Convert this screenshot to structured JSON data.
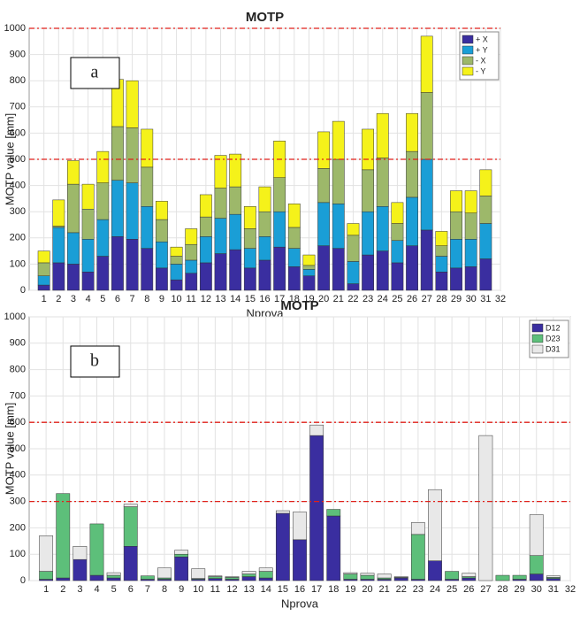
{
  "chart_data": [
    {
      "type": "bar",
      "stacked": true,
      "title": "MOTP",
      "xlabel": "Nprova",
      "ylabel": "MOTP value [mm]",
      "annotation": "a",
      "x": [
        1,
        2,
        3,
        4,
        5,
        6,
        7,
        8,
        9,
        10,
        11,
        12,
        13,
        14,
        15,
        16,
        17,
        18,
        19,
        20,
        21,
        22,
        23,
        24,
        25,
        26,
        27,
        28,
        29,
        30,
        31
      ],
      "series": [
        {
          "name": "+ X",
          "color": "#3a2ea0",
          "values": [
            20,
            105,
            100,
            70,
            130,
            205,
            195,
            160,
            85,
            40,
            65,
            105,
            140,
            155,
            85,
            115,
            165,
            90,
            55,
            170,
            160,
            25,
            135,
            150,
            105,
            170,
            230,
            70,
            85,
            90,
            120
          ]
        },
        {
          "name": "+ Y",
          "color": "#1a9ed6",
          "values": [
            35,
            135,
            120,
            125,
            140,
            215,
            215,
            160,
            100,
            60,
            50,
            100,
            135,
            135,
            75,
            90,
            135,
            70,
            25,
            165,
            170,
            85,
            165,
            170,
            85,
            185,
            270,
            60,
            110,
            105,
            135
          ]
        },
        {
          "name": "- X",
          "color": "#9db86a",
          "values": [
            50,
            5,
            185,
            115,
            140,
            205,
            210,
            150,
            85,
            30,
            60,
            75,
            115,
            105,
            75,
            95,
            130,
            80,
            15,
            130,
            170,
            100,
            160,
            185,
            65,
            175,
            255,
            40,
            105,
            100,
            105
          ]
        },
        {
          "name": "- Y",
          "color": "#f5f21a",
          "values": [
            45,
            100,
            90,
            95,
            120,
            180,
            180,
            145,
            70,
            35,
            60,
            85,
            125,
            125,
            85,
            95,
            140,
            90,
            40,
            140,
            145,
            45,
            155,
            170,
            80,
            145,
            215,
            55,
            80,
            85,
            100
          ]
        }
      ],
      "xlim": [
        0,
        32
      ],
      "xticks": [
        1,
        2,
        3,
        4,
        5,
        6,
        7,
        8,
        9,
        10,
        11,
        12,
        13,
        14,
        15,
        16,
        17,
        18,
        19,
        20,
        21,
        22,
        23,
        24,
        25,
        26,
        27,
        28,
        29,
        30,
        31,
        32
      ],
      "ylim": [
        0,
        1000
      ],
      "yticks": [
        0,
        100,
        200,
        300,
        400,
        500,
        600,
        700,
        800,
        900,
        1000
      ],
      "hlines": [
        500,
        1000
      ],
      "hline_color": "#e0201a",
      "grid": true,
      "legend": "upper right"
    },
    {
      "type": "bar",
      "stacked": true,
      "title": "MOTP",
      "xlabel": "Nprova",
      "ylabel": "MOTP value [mm]",
      "annotation": "b",
      "x": [
        1,
        2,
        3,
        4,
        5,
        6,
        7,
        8,
        9,
        10,
        11,
        12,
        13,
        14,
        15,
        16,
        17,
        18,
        19,
        20,
        21,
        22,
        23,
        24,
        25,
        26,
        27,
        28,
        29,
        30,
        31
      ],
      "series": [
        {
          "name": "D12",
          "color": "#3a2ea0",
          "values": [
            5,
            10,
            80,
            20,
            10,
            130,
            5,
            5,
            90,
            5,
            8,
            5,
            15,
            10,
            255,
            155,
            550,
            245,
            5,
            5,
            5,
            10,
            5,
            75,
            5,
            10,
            0,
            0,
            5,
            25,
            8
          ]
        },
        {
          "name": "D23",
          "color": "#5dbf7a",
          "values": [
            30,
            320,
            0,
            195,
            10,
            150,
            13,
            5,
            10,
            3,
            7,
            7,
            10,
            25,
            0,
            0,
            0,
            25,
            20,
            15,
            5,
            2,
            170,
            0,
            30,
            5,
            0,
            20,
            15,
            70,
            4
          ]
        },
        {
          "name": "D31",
          "color": "#e8e8e8",
          "values": [
            135,
            0,
            50,
            0,
            10,
            10,
            0,
            38,
            15,
            37,
            3,
            3,
            10,
            13,
            10,
            105,
            40,
            0,
            5,
            8,
            15,
            3,
            45,
            270,
            0,
            13,
            550,
            0,
            0,
            155,
            6
          ]
        }
      ],
      "xlim": [
        0,
        32
      ],
      "xticks": [
        1,
        2,
        3,
        4,
        5,
        6,
        7,
        8,
        9,
        10,
        11,
        12,
        13,
        14,
        15,
        16,
        17,
        18,
        19,
        20,
        21,
        22,
        23,
        24,
        25,
        26,
        27,
        28,
        29,
        30,
        31,
        32
      ],
      "ylim": [
        0,
        1000
      ],
      "yticks": [
        0,
        100,
        200,
        300,
        400,
        500,
        600,
        700,
        800,
        900,
        1000
      ],
      "hlines": [
        300,
        600
      ],
      "hline_color": "#e0201a",
      "grid": true,
      "legend": "upper right"
    }
  ]
}
